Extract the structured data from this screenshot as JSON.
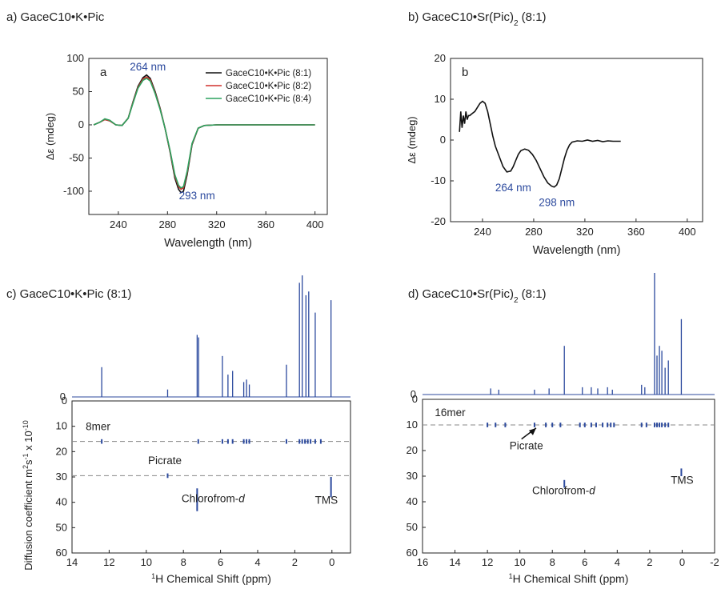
{
  "panels": {
    "a": {
      "label": "a) GaceC10•K•Pic"
    },
    "b": {
      "label": "b) GaceC10•Sr(Pic)",
      "label_sub": "2",
      "label_end": " (8:1)"
    },
    "c": {
      "label": "c) GaceC10•K•Pic (8:1)"
    },
    "d": {
      "label": "d) GaceC10•Sr(Pic)",
      "label_sub": "2",
      "label_end": " (8:1)"
    }
  },
  "chart_data": [
    {
      "id": "a",
      "type": "line",
      "inset_label": "a",
      "xlabel": "Wavelength (nm)",
      "ylabel": "Δε (mdeg)",
      "xlim": [
        216,
        410
      ],
      "ylim": [
        -135,
        100
      ],
      "xticks": [
        240,
        280,
        320,
        360,
        400
      ],
      "yticks": [
        100,
        50,
        0,
        -50,
        -100
      ],
      "legend_position": "top-right",
      "annotations": [
        {
          "text": "264 nm",
          "x": 264,
          "y": 82
        },
        {
          "text": "293 nm",
          "x": 304,
          "y": -112
        }
      ],
      "series": [
        {
          "name": "GaceC10•K•Pic (8:1)",
          "color": "#111111",
          "x": [
            220,
            225,
            229,
            233,
            238,
            243,
            248,
            252,
            256,
            260,
            263,
            266,
            270,
            274,
            278,
            282,
            286,
            289,
            291,
            293,
            296,
            300,
            305,
            310,
            320,
            340,
            360,
            400
          ],
          "y": [
            0,
            4,
            8,
            6,
            0,
            -1,
            10,
            35,
            58,
            71,
            75,
            70,
            50,
            25,
            -5,
            -40,
            -80,
            -97,
            -102,
            -100,
            -75,
            -30,
            -5,
            -1,
            0,
            0,
            0,
            0
          ]
        },
        {
          "name": "GaceC10•K•Pic (8:2)",
          "color": "#d0312d",
          "x": [
            220,
            225,
            229,
            233,
            238,
            243,
            248,
            252,
            256,
            260,
            263,
            266,
            270,
            274,
            278,
            282,
            286,
            289,
            291,
            293,
            296,
            300,
            305,
            310,
            320,
            340,
            360,
            400
          ],
          "y": [
            0,
            4,
            8,
            6,
            0,
            -1,
            10,
            34,
            56,
            69,
            72,
            68,
            48,
            24,
            -5,
            -39,
            -77,
            -93,
            -97,
            -95,
            -72,
            -29,
            -5,
            -1,
            0,
            0,
            0,
            0
          ]
        },
        {
          "name": "GaceC10•K•Pic (8:4)",
          "color": "#2ca25f",
          "x": [
            220,
            225,
            229,
            233,
            238,
            243,
            248,
            252,
            256,
            260,
            263,
            266,
            270,
            274,
            278,
            282,
            286,
            289,
            291,
            293,
            296,
            300,
            305,
            310,
            320,
            340,
            360,
            400
          ],
          "y": [
            0,
            4,
            9,
            7,
            0,
            -1,
            10,
            33,
            55,
            67,
            70,
            66,
            47,
            23,
            -5,
            -38,
            -75,
            -91,
            -95,
            -93,
            -70,
            -28,
            -5,
            -1,
            0,
            0,
            0,
            0
          ]
        }
      ]
    },
    {
      "id": "b",
      "type": "line",
      "inset_label": "b",
      "xlabel": "Wavelength (nm)",
      "ylabel": "Δε (mdeg)",
      "xlim": [
        215,
        412
      ],
      "ylim": [
        -20,
        20
      ],
      "xticks": [
        240,
        280,
        320,
        360,
        400
      ],
      "yticks": [
        20,
        10,
        0,
        -10,
        -20
      ],
      "annotations": [
        {
          "text": "264 nm",
          "x": 264,
          "y": -12.5
        },
        {
          "text": "298 nm",
          "x": 298,
          "y": -16.2
        }
      ],
      "series": [
        {
          "name": "",
          "color": "#111111",
          "x": [
            222,
            223,
            224,
            225,
            226,
            227,
            228,
            229,
            230,
            232,
            234,
            236,
            238,
            240,
            242,
            244,
            246,
            248,
            250,
            253,
            256,
            259,
            262,
            264,
            266,
            268,
            270,
            273,
            276,
            279,
            282,
            285,
            288,
            291,
            294,
            296,
            298,
            300,
            302,
            304,
            306,
            308,
            310,
            314,
            318,
            322,
            326,
            330,
            334,
            338,
            342,
            348
          ],
          "y": [
            2,
            7,
            3,
            6,
            4,
            7,
            5,
            6,
            6,
            6.5,
            7,
            8,
            9,
            9.5,
            9,
            7,
            4,
            1,
            -1.5,
            -4,
            -6.5,
            -7.8,
            -7.6,
            -6.5,
            -5,
            -3.5,
            -2.6,
            -2.2,
            -2.5,
            -3.5,
            -5,
            -7,
            -9,
            -10.5,
            -11.3,
            -11.5,
            -11,
            -9.5,
            -7,
            -4.5,
            -2.5,
            -1.2,
            -0.5,
            -0.2,
            -0.3,
            0,
            -0.3,
            -0.1,
            -0.4,
            -0.2,
            -0.3,
            -0.3
          ]
        }
      ]
    },
    {
      "id": "c",
      "type": "scatter",
      "xlabel": "1H Chemical Shift (ppm)",
      "ylabel": "Diffusion coefficient  m2s-1 x 10-10",
      "xlim": [
        14,
        -1
      ],
      "ylim": [
        60,
        0
      ],
      "xticks": [
        14,
        12,
        10,
        8,
        6,
        4,
        2,
        0
      ],
      "yticks": [
        0,
        10,
        20,
        30,
        40,
        50,
        60
      ],
      "spectrum_peaks": [
        {
          "ppm": 12.4,
          "h": 0.24
        },
        {
          "ppm": 8.85,
          "h": 0.06
        },
        {
          "ppm": 7.26,
          "h": 0.5
        },
        {
          "ppm": 7.18,
          "h": 0.48
        },
        {
          "ppm": 5.9,
          "h": 0.33
        },
        {
          "ppm": 5.6,
          "h": 0.18
        },
        {
          "ppm": 5.35,
          "h": 0.21
        },
        {
          "ppm": 4.75,
          "h": 0.12
        },
        {
          "ppm": 4.6,
          "h": 0.14
        },
        {
          "ppm": 4.45,
          "h": 0.1
        },
        {
          "ppm": 2.45,
          "h": 0.26
        },
        {
          "ppm": 1.75,
          "h": 0.92
        },
        {
          "ppm": 1.6,
          "h": 0.98
        },
        {
          "ppm": 1.4,
          "h": 0.82
        },
        {
          "ppm": 1.25,
          "h": 0.85
        },
        {
          "ppm": 0.9,
          "h": 0.68
        },
        {
          "ppm": 0.05,
          "h": 0.78
        }
      ],
      "dashed_lines": [
        16,
        29.5
      ],
      "diffusion_marks": [
        {
          "ppm": 12.4,
          "d": 16
        },
        {
          "ppm": 7.2,
          "d": 16
        },
        {
          "ppm": 5.9,
          "d": 16
        },
        {
          "ppm": 5.6,
          "d": 16
        },
        {
          "ppm": 5.35,
          "d": 16
        },
        {
          "ppm": 4.75,
          "d": 16
        },
        {
          "ppm": 4.6,
          "d": 16
        },
        {
          "ppm": 4.45,
          "d": 16
        },
        {
          "ppm": 2.45,
          "d": 16
        },
        {
          "ppm": 1.75,
          "d": 16
        },
        {
          "ppm": 1.6,
          "d": 16
        },
        {
          "ppm": 1.45,
          "d": 16
        },
        {
          "ppm": 1.3,
          "d": 16
        },
        {
          "ppm": 1.15,
          "d": 16
        },
        {
          "ppm": 0.9,
          "d": 16
        },
        {
          "ppm": 0.6,
          "d": 16
        },
        {
          "ppm": 8.85,
          "d": 29.5
        },
        {
          "ppm": 7.26,
          "d": 39,
          "len": 9
        },
        {
          "ppm": 0.05,
          "d": 34,
          "len": 8
        }
      ],
      "annotations": [
        {
          "text": "8mer",
          "x": 12.6,
          "y": 11.5
        },
        {
          "text": "Picrate",
          "x": 9.0,
          "y": 25
        },
        {
          "text": "Chlorofrom-d",
          "x": 6.4,
          "y": 40
        },
        {
          "text": "TMS",
          "x": 0.3,
          "y": 40.5
        }
      ]
    },
    {
      "id": "d",
      "type": "scatter",
      "xlabel": "1H Chemical Shift (ppm)",
      "ylabel": "",
      "xlim": [
        16,
        -2
      ],
      "ylim": [
        60,
        0
      ],
      "xticks": [
        16,
        14,
        12,
        10,
        8,
        6,
        4,
        2,
        0,
        -2
      ],
      "yticks": [
        0,
        10,
        20,
        30,
        40,
        50,
        60
      ],
      "spectrum_peaks": [
        {
          "ppm": 11.8,
          "h": 0.05
        },
        {
          "ppm": 11.3,
          "h": 0.04
        },
        {
          "ppm": 9.1,
          "h": 0.04
        },
        {
          "ppm": 8.2,
          "h": 0.05
        },
        {
          "ppm": 7.26,
          "h": 0.4
        },
        {
          "ppm": 6.15,
          "h": 0.06
        },
        {
          "ppm": 5.6,
          "h": 0.06
        },
        {
          "ppm": 5.2,
          "h": 0.05
        },
        {
          "ppm": 4.6,
          "h": 0.06
        },
        {
          "ppm": 4.3,
          "h": 0.04
        },
        {
          "ppm": 2.5,
          "h": 0.08
        },
        {
          "ppm": 2.3,
          "h": 0.06
        },
        {
          "ppm": 1.7,
          "h": 1.0
        },
        {
          "ppm": 1.55,
          "h": 0.32
        },
        {
          "ppm": 1.4,
          "h": 0.4
        },
        {
          "ppm": 1.25,
          "h": 0.36
        },
        {
          "ppm": 1.05,
          "h": 0.22
        },
        {
          "ppm": 0.85,
          "h": 0.28
        },
        {
          "ppm": 0.05,
          "h": 0.62
        }
      ],
      "dashed_lines": [
        10
      ],
      "diffusion_marks": [
        {
          "ppm": 12.0,
          "d": 10
        },
        {
          "ppm": 11.5,
          "d": 10
        },
        {
          "ppm": 10.9,
          "d": 10
        },
        {
          "ppm": 9.1,
          "d": 10
        },
        {
          "ppm": 8.4,
          "d": 10
        },
        {
          "ppm": 8.0,
          "d": 10
        },
        {
          "ppm": 7.5,
          "d": 10
        },
        {
          "ppm": 6.3,
          "d": 10
        },
        {
          "ppm": 6.0,
          "d": 10
        },
        {
          "ppm": 5.6,
          "d": 10
        },
        {
          "ppm": 5.3,
          "d": 10
        },
        {
          "ppm": 4.9,
          "d": 10
        },
        {
          "ppm": 4.6,
          "d": 10
        },
        {
          "ppm": 4.4,
          "d": 10
        },
        {
          "ppm": 4.2,
          "d": 10
        },
        {
          "ppm": 2.5,
          "d": 10
        },
        {
          "ppm": 2.2,
          "d": 10
        },
        {
          "ppm": 1.7,
          "d": 10
        },
        {
          "ppm": 1.55,
          "d": 10
        },
        {
          "ppm": 1.4,
          "d": 10
        },
        {
          "ppm": 1.25,
          "d": 10
        },
        {
          "ppm": 1.05,
          "d": 10
        },
        {
          "ppm": 0.85,
          "d": 10
        },
        {
          "ppm": 7.26,
          "d": 33,
          "len": 3
        },
        {
          "ppm": 0.05,
          "d": 28.5,
          "len": 3
        }
      ],
      "arrow": {
        "from": [
          9.9,
          15.5
        ],
        "to": [
          9.0,
          11.2
        ]
      },
      "annotations": [
        {
          "text": "16mer",
          "x": 14.3,
          "y": 6.5
        },
        {
          "text": "Picrate",
          "x": 9.6,
          "y": 19.5
        },
        {
          "text": "Chlorofrom-d",
          "x": 7.3,
          "y": 37
        },
        {
          "text": "TMS",
          "x": 0.0,
          "y": 33
        }
      ]
    }
  ]
}
